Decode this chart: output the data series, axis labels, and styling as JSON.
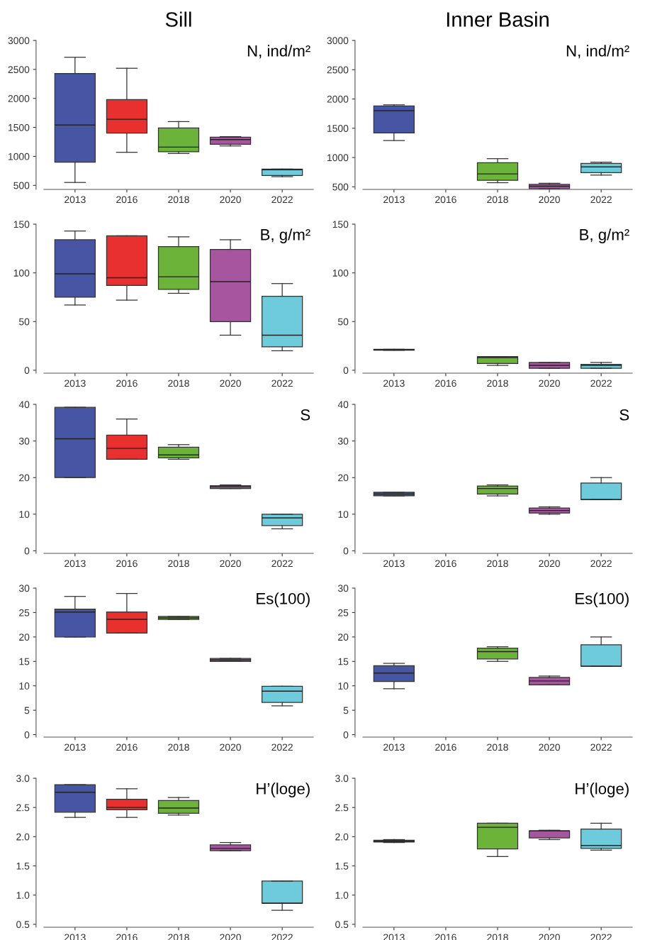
{
  "chart_data": [
    {
      "type": "box",
      "title": "Sill",
      "annotations": [
        "N, ind/m²"
      ],
      "categories": [
        "2013",
        "2016",
        "2018",
        "2020",
        "2022"
      ],
      "colors": [
        "#4656a4",
        "#e8302e",
        "#6cb33a",
        "#a855a0",
        "#6ecbdc"
      ],
      "ylim": [
        430,
        3000
      ],
      "yticks": [
        500,
        1000,
        1500,
        2000,
        2500,
        3000
      ],
      "grid": false,
      "boxes": [
        {
          "low": 550,
          "q1": 900,
          "median": 1540,
          "q3": 2430,
          "high": 2710
        },
        {
          "low": 1070,
          "q1": 1400,
          "median": 1640,
          "q3": 1980,
          "high": 2520
        },
        {
          "low": 1050,
          "q1": 1080,
          "median": 1160,
          "q3": 1490,
          "high": 1600
        },
        {
          "low": 1180,
          "q1": 1210,
          "median": 1290,
          "q3": 1330,
          "high": 1340
        },
        {
          "low": 650,
          "q1": 670,
          "median": 770,
          "q3": 780,
          "high": 780
        }
      ]
    },
    {
      "type": "box",
      "title": "Inner Basin",
      "annotations": [
        "N, ind/m²"
      ],
      "categories": [
        "2013",
        "2016",
        "2018",
        "2020",
        "2022"
      ],
      "colors": [
        "#4656a4",
        "#e8302e",
        "#6cb33a",
        "#a855a0",
        "#6ecbdc"
      ],
      "ylim": [
        455,
        3000
      ],
      "yticks": [
        500,
        1000,
        1500,
        2000,
        2500,
        3000
      ],
      "grid": false,
      "boxes": [
        {
          "low": 1290,
          "q1": 1420,
          "median": 1800,
          "q3": 1880,
          "high": 1900
        },
        null,
        {
          "low": 570,
          "q1": 610,
          "median": 720,
          "q3": 910,
          "high": 980
        },
        {
          "low": 470,
          "q1": 470,
          "median": 510,
          "q3": 540,
          "high": 560
        },
        {
          "low": 700,
          "q1": 740,
          "median": 840,
          "q3": 900,
          "high": 920
        }
      ]
    },
    {
      "type": "box",
      "annotations": [
        "B, g/m²"
      ],
      "categories": [
        "2013",
        "2016",
        "2018",
        "2020",
        "2022"
      ],
      "colors": [
        "#4656a4",
        "#e8302e",
        "#6cb33a",
        "#a855a0",
        "#6ecbdc"
      ],
      "ylim": [
        -3,
        150
      ],
      "yticks": [
        0,
        50,
        100,
        150
      ],
      "grid": false,
      "boxes": [
        {
          "low": 67,
          "q1": 75,
          "median": 99,
          "q3": 134,
          "high": 143
        },
        {
          "low": 72,
          "q1": 87,
          "median": 95,
          "q3": 138,
          "high": 138
        },
        {
          "low": 79,
          "q1": 83,
          "median": 96,
          "q3": 127,
          "high": 137
        },
        {
          "low": 36,
          "q1": 50,
          "median": 91,
          "q3": 124,
          "high": 134
        },
        {
          "low": 20,
          "q1": 24,
          "median": 36,
          "q3": 76,
          "high": 89
        }
      ]
    },
    {
      "type": "box",
      "annotations": [
        "B, g/m²"
      ],
      "categories": [
        "2013",
        "2016",
        "2018",
        "2020",
        "2022"
      ],
      "colors": [
        "#4656a4",
        "#e8302e",
        "#6cb33a",
        "#a855a0",
        "#6ecbdc"
      ],
      "ylim": [
        -3,
        150
      ],
      "yticks": [
        0,
        50,
        100,
        150
      ],
      "grid": false,
      "boxes": [
        {
          "low": 20.5,
          "q1": 20.5,
          "median": 21,
          "q3": 21.5,
          "high": 21.5
        },
        null,
        {
          "low": 5,
          "q1": 7,
          "median": 13,
          "q3": 14,
          "high": 14
        },
        {
          "low": 2,
          "q1": 2,
          "median": 5,
          "q3": 8,
          "high": 8
        },
        {
          "low": 2,
          "q1": 2,
          "median": 5,
          "q3": 6,
          "high": 8
        }
      ]
    },
    {
      "type": "box",
      "annotations": [
        "S"
      ],
      "categories": [
        "2013",
        "2016",
        "2018",
        "2020",
        "2022"
      ],
      "colors": [
        "#4656a4",
        "#e8302e",
        "#6cb33a",
        "#a855a0",
        "#6ecbdc"
      ],
      "ylim": [
        -0.7,
        40
      ],
      "yticks": [
        0,
        10,
        20,
        30,
        40
      ],
      "grid": false,
      "boxes": [
        {
          "low": 20,
          "q1": 20,
          "median": 30.6,
          "q3": 39.2,
          "high": 39.2
        },
        {
          "low": 25,
          "q1": 25,
          "median": 28,
          "q3": 31.6,
          "high": 36
        },
        {
          "low": 25,
          "q1": 25.4,
          "median": 26.2,
          "q3": 28.3,
          "high": 29
        },
        {
          "low": 17,
          "q1": 17,
          "median": 17.5,
          "q3": 17.8,
          "high": 18
        },
        {
          "low": 6,
          "q1": 6.9,
          "median": 9,
          "q3": 10,
          "high": 10
        }
      ]
    },
    {
      "type": "box",
      "annotations": [
        "S"
      ],
      "categories": [
        "2013",
        "2016",
        "2018",
        "2020",
        "2022"
      ],
      "colors": [
        "#4656a4",
        "#e8302e",
        "#6cb33a",
        "#a855a0",
        "#6ecbdc"
      ],
      "ylim": [
        -0.7,
        40
      ],
      "yticks": [
        0,
        10,
        20,
        30,
        40
      ],
      "grid": false,
      "boxes": [
        {
          "low": 15,
          "q1": 15,
          "median": 15.5,
          "q3": 16,
          "high": 16
        },
        null,
        {
          "low": 15,
          "q1": 15.5,
          "median": 17,
          "q3": 17.7,
          "high": 18
        },
        {
          "low": 10,
          "q1": 10.3,
          "median": 11,
          "q3": 11.7,
          "high": 12
        },
        {
          "low": 14,
          "q1": 14,
          "median": 14,
          "q3": 18.5,
          "high": 20
        }
      ]
    },
    {
      "type": "box",
      "annotations": [
        "Es(100)"
      ],
      "categories": [
        "2013",
        "2016",
        "2018",
        "2020",
        "2022"
      ],
      "colors": [
        "#4656a4",
        "#e8302e",
        "#6cb33a",
        "#a855a0",
        "#6ecbdc"
      ],
      "ylim": [
        -0.5,
        30
      ],
      "yticks": [
        0,
        5,
        10,
        15,
        20,
        25,
        30
      ],
      "grid": false,
      "boxes": [
        {
          "low": 20,
          "q1": 20,
          "median": 25.1,
          "q3": 25.7,
          "high": 28.3
        },
        {
          "low": 20.8,
          "q1": 20.8,
          "median": 23.6,
          "q3": 25.1,
          "high": 28.9
        },
        {
          "low": 23.6,
          "q1": 23.6,
          "median": 23.9,
          "q3": 24.2,
          "high": 24.2
        },
        {
          "low": 15,
          "q1": 15,
          "median": 15.3,
          "q3": 15.6,
          "high": 15.6
        },
        {
          "low": 5.9,
          "q1": 6.6,
          "median": 8.9,
          "q3": 9.9,
          "high": 9.9
        }
      ]
    },
    {
      "type": "box",
      "annotations": [
        "Es(100)"
      ],
      "categories": [
        "2013",
        "2016",
        "2018",
        "2020",
        "2022"
      ],
      "colors": [
        "#4656a4",
        "#e8302e",
        "#6cb33a",
        "#a855a0",
        "#6ecbdc"
      ],
      "ylim": [
        -0.5,
        30
      ],
      "yticks": [
        0,
        5,
        10,
        15,
        20,
        25,
        30
      ],
      "grid": false,
      "boxes": [
        {
          "low": 9.4,
          "q1": 10.9,
          "median": 12.6,
          "q3": 14.1,
          "high": 14.6
        },
        null,
        {
          "low": 15,
          "q1": 15.5,
          "median": 17,
          "q3": 17.7,
          "high": 18
        },
        {
          "low": 10.2,
          "q1": 10.2,
          "median": 11,
          "q3": 11.7,
          "high": 12
        },
        {
          "low": 14,
          "q1": 14,
          "median": 14,
          "q3": 18.4,
          "high": 20
        }
      ]
    },
    {
      "type": "box",
      "annotations": [
        "H’(loge)"
      ],
      "categories": [
        "2013",
        "2016",
        "2018",
        "2020",
        "2022"
      ],
      "colors": [
        "#4656a4",
        "#e8302e",
        "#6cb33a",
        "#a855a0",
        "#6ecbdc"
      ],
      "ylim": [
        0.45,
        3.0
      ],
      "yticks": [
        {
          "value": 0.5,
          "label": "0.5"
        },
        {
          "value": 1.0,
          "label": "1.0"
        },
        {
          "value": 1.5,
          "label": "1.5"
        },
        {
          "value": 2.0,
          "label": "2.0"
        },
        {
          "value": 2.5,
          "label": "2.5"
        },
        {
          "value": 3.0,
          "label": "3.0"
        }
      ],
      "grid": false,
      "boxes": [
        {
          "low": 2.33,
          "q1": 2.42,
          "median": 2.76,
          "q3": 2.89,
          "high": 2.89
        },
        {
          "low": 2.33,
          "q1": 2.46,
          "median": 2.5,
          "q3": 2.64,
          "high": 2.82
        },
        {
          "low": 2.37,
          "q1": 2.4,
          "median": 2.49,
          "q3": 2.62,
          "high": 2.67
        },
        {
          "low": 1.76,
          "q1": 1.76,
          "median": 1.8,
          "q3": 1.86,
          "high": 1.9
        },
        {
          "low": 0.74,
          "q1": 0.86,
          "median": 0.86,
          "q3": 1.24,
          "high": 1.24
        }
      ]
    },
    {
      "type": "box",
      "annotations": [
        "H’(loge)"
      ],
      "categories": [
        "2013",
        "2016",
        "2018",
        "2020",
        "2022"
      ],
      "colors": [
        "#4656a4",
        "#e8302e",
        "#6cb33a",
        "#a855a0",
        "#6ecbdc"
      ],
      "ylim": [
        0.45,
        3.0
      ],
      "yticks": [
        {
          "value": 0.5,
          "label": "0.5"
        },
        {
          "value": 1.0,
          "label": "1.0"
        },
        {
          "value": 1.5,
          "label": "1.5"
        },
        {
          "value": 2.0,
          "label": "2.0"
        },
        {
          "value": 2.5,
          "label": "2.5"
        },
        {
          "value": 3.0,
          "label": "3.0"
        }
      ],
      "grid": false,
      "boxes": [
        {
          "low": 1.9,
          "q1": 1.91,
          "median": 1.92,
          "q3": 1.94,
          "high": 1.95
        },
        null,
        {
          "low": 1.66,
          "q1": 1.79,
          "median": 2.16,
          "q3": 2.23,
          "high": 2.23
        },
        {
          "low": 1.95,
          "q1": 1.98,
          "median": 2.1,
          "q3": 2.1,
          "high": 2.11
        },
        {
          "low": 1.77,
          "q1": 1.8,
          "median": 1.85,
          "q3": 2.13,
          "high": 2.23
        }
      ]
    }
  ]
}
